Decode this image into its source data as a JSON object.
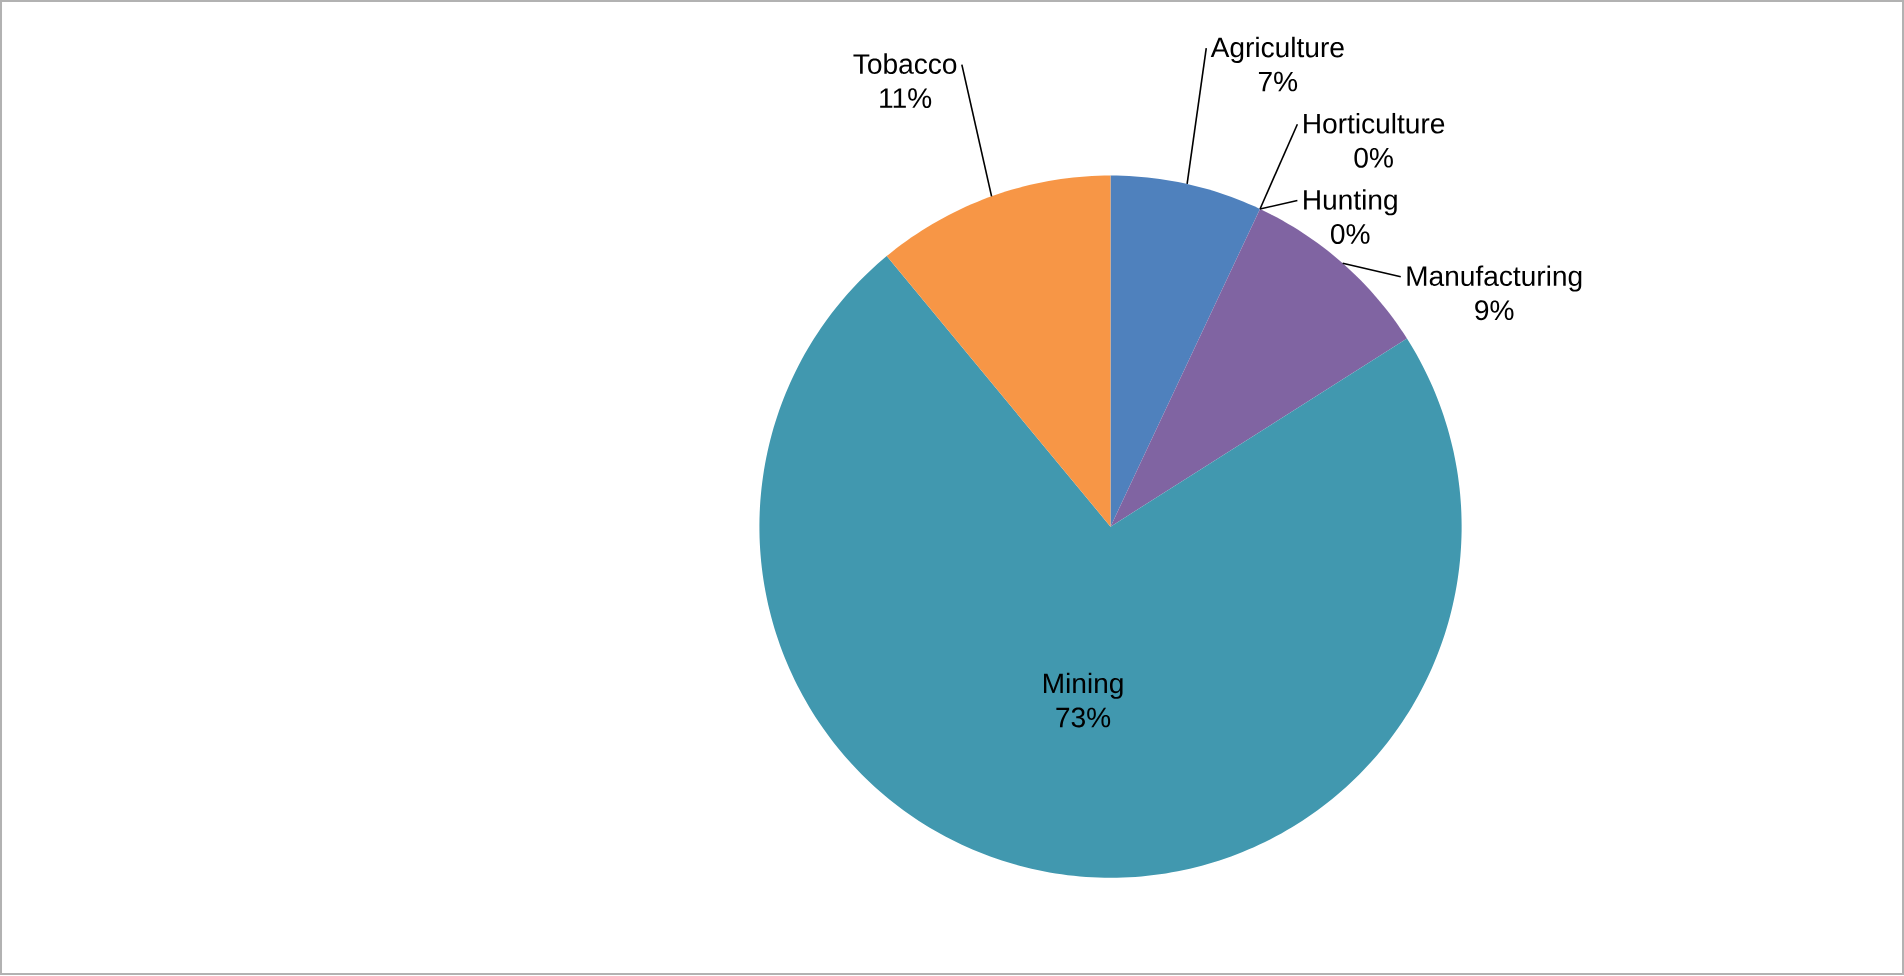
{
  "chart_data": {
    "type": "pie",
    "categories": [
      "Agriculture",
      "Horticulture",
      "Hunting",
      "Manufacturing",
      "Mining",
      "Tobacco"
    ],
    "values": [
      7,
      0,
      0,
      9,
      73,
      11
    ],
    "value_labels": [
      "7%",
      "0%",
      "0%",
      "9%",
      "73%",
      "11%"
    ],
    "colors": [
      "#4f81bd",
      "#c0504d",
      "#9bbb59",
      "#8064a2",
      "#4198af",
      "#f79646"
    ]
  }
}
